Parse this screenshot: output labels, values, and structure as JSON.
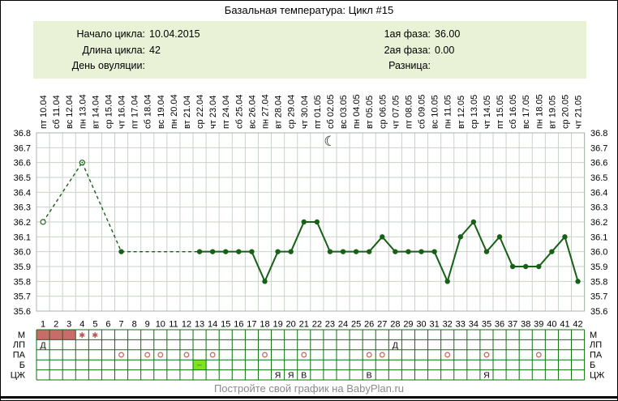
{
  "title": "Базальная температура: Цикл #15",
  "info": {
    "left": [
      {
        "label": "Начало цикла:",
        "value": "10.04.2015"
      },
      {
        "label": "Длина цикла:",
        "value": "42"
      },
      {
        "label": "День овуляции:",
        "value": ""
      }
    ],
    "right": [
      {
        "label": "1ая фаза:",
        "value": "36.00"
      },
      {
        "label": "2ая фаза:",
        "value": "0.00"
      },
      {
        "label": "Разница:",
        "value": ""
      }
    ]
  },
  "footer": {
    "text": "Постройте свой график на BabyPlan.ru"
  },
  "colors": {
    "info_box_bg": "#e9f2d7",
    "chart_grid": "#c9d2c9",
    "chart_border": "#a7b5a7",
    "line": "#176117",
    "table_border": "#0b720b",
    "menses_fill": "#c76b6b",
    "menses_star": "#c94f4f",
    "pa_circle": "#cb6b6b",
    "b_cell_bg": "#7de41e",
    "b_cell_text": "#555555",
    "footer_text": "#8a8a8a",
    "text": "#000000"
  },
  "chart_data": {
    "type": "line",
    "title": "Базальная температура: Цикл #15",
    "ylabel": "",
    "xlabel": "",
    "ylim": [
      35.6,
      36.8
    ],
    "ytick_step": 0.1,
    "grid": true,
    "moon": {
      "day": 23,
      "symbol": "☾",
      "name": "waning-crescent-moon"
    },
    "days": [
      {
        "day": 1,
        "weekday": "пт",
        "date": "10.04",
        "temp": 36.2,
        "marker": "open"
      },
      {
        "day": 2,
        "weekday": "сб",
        "date": "11.04",
        "temp": null
      },
      {
        "day": 3,
        "weekday": "вс",
        "date": "12.04",
        "temp": null
      },
      {
        "day": 4,
        "weekday": "пн",
        "date": "13.04",
        "temp": 36.6,
        "marker": "open-dot"
      },
      {
        "day": 5,
        "weekday": "вт",
        "date": "14.04",
        "temp": null
      },
      {
        "day": 6,
        "weekday": "ср",
        "date": "15.04",
        "temp": null
      },
      {
        "day": 7,
        "weekday": "чт",
        "date": "16.04",
        "temp": 36.0,
        "marker": "filled"
      },
      {
        "day": 8,
        "weekday": "пт",
        "date": "17.04",
        "temp": null
      },
      {
        "day": 9,
        "weekday": "сб",
        "date": "18.04",
        "temp": null
      },
      {
        "day": 10,
        "weekday": "вс",
        "date": "19.04",
        "temp": null
      },
      {
        "day": 11,
        "weekday": "пн",
        "date": "20.04",
        "temp": null
      },
      {
        "day": 12,
        "weekday": "вт",
        "date": "21.04",
        "temp": null
      },
      {
        "day": 13,
        "weekday": "ср",
        "date": "22.04",
        "temp": 36.0,
        "marker": "filled"
      },
      {
        "day": 14,
        "weekday": "чт",
        "date": "23.04",
        "temp": 36.0,
        "marker": "filled"
      },
      {
        "day": 15,
        "weekday": "пт",
        "date": "24.04",
        "temp": 36.0,
        "marker": "filled"
      },
      {
        "day": 16,
        "weekday": "сб",
        "date": "25.04",
        "temp": 36.0,
        "marker": "filled"
      },
      {
        "day": 17,
        "weekday": "вс",
        "date": "26.04",
        "temp": 36.0,
        "marker": "filled"
      },
      {
        "day": 18,
        "weekday": "пн",
        "date": "27.04",
        "temp": 35.8,
        "marker": "filled"
      },
      {
        "day": 19,
        "weekday": "вт",
        "date": "28.04",
        "temp": 36.0,
        "marker": "filled"
      },
      {
        "day": 20,
        "weekday": "ср",
        "date": "29.04",
        "temp": 36.0,
        "marker": "filled"
      },
      {
        "day": 21,
        "weekday": "чт",
        "date": "30.04",
        "temp": 36.2,
        "marker": "filled"
      },
      {
        "day": 22,
        "weekday": "пт",
        "date": "01.05",
        "temp": 36.2,
        "marker": "filled"
      },
      {
        "day": 23,
        "weekday": "сб",
        "date": "02.05",
        "temp": 36.0,
        "marker": "filled"
      },
      {
        "day": 24,
        "weekday": "вс",
        "date": "03.05",
        "temp": 36.0,
        "marker": "filled"
      },
      {
        "day": 25,
        "weekday": "пн",
        "date": "04.05",
        "temp": 36.0,
        "marker": "filled"
      },
      {
        "day": 26,
        "weekday": "вт",
        "date": "05.05",
        "temp": 36.0,
        "marker": "filled"
      },
      {
        "day": 27,
        "weekday": "ср",
        "date": "06.05",
        "temp": 36.1,
        "marker": "filled"
      },
      {
        "day": 28,
        "weekday": "чт",
        "date": "07.05",
        "temp": 36.0,
        "marker": "filled"
      },
      {
        "day": 29,
        "weekday": "пт",
        "date": "08.05",
        "temp": 36.0,
        "marker": "filled"
      },
      {
        "day": 30,
        "weekday": "сб",
        "date": "09.05",
        "temp": 36.0,
        "marker": "filled"
      },
      {
        "day": 31,
        "weekday": "вс",
        "date": "10.05",
        "temp": 36.0,
        "marker": "filled"
      },
      {
        "day": 32,
        "weekday": "пн",
        "date": "11.05",
        "temp": 35.8,
        "marker": "filled"
      },
      {
        "day": 33,
        "weekday": "вт",
        "date": "12.05",
        "temp": 36.1,
        "marker": "filled"
      },
      {
        "day": 34,
        "weekday": "ср",
        "date": "13.05",
        "temp": 36.2,
        "marker": "filled"
      },
      {
        "day": 35,
        "weekday": "чт",
        "date": "14.05",
        "temp": 36.0,
        "marker": "filled"
      },
      {
        "day": 36,
        "weekday": "пт",
        "date": "15.05",
        "temp": 36.1,
        "marker": "filled"
      },
      {
        "day": 37,
        "weekday": "сб",
        "date": "16.05",
        "temp": 35.9,
        "marker": "filled"
      },
      {
        "day": 38,
        "weekday": "вс",
        "date": "17.05",
        "temp": 35.9,
        "marker": "filled"
      },
      {
        "day": 39,
        "weekday": "пн",
        "date": "18.05",
        "temp": 35.9,
        "marker": "filled"
      },
      {
        "day": 40,
        "weekday": "вт",
        "date": "19.05",
        "temp": 36.0,
        "marker": "filled"
      },
      {
        "day": 41,
        "weekday": "ср",
        "date": "20.05",
        "temp": 36.1,
        "marker": "filled"
      },
      {
        "day": 42,
        "weekday": "чт",
        "date": "21.05",
        "temp": 35.8,
        "marker": "filled"
      }
    ],
    "table": {
      "row_labels": [
        "М",
        "ЛП",
        "ПА",
        "Б",
        "ЦЖ"
      ],
      "menstruation_block_days": [
        1,
        2,
        3
      ],
      "menstruation_star_days": [
        4,
        5
      ],
      "lp_cells": {
        "1": "Д",
        "28": "Д"
      },
      "pa_circle_days": [
        7,
        9,
        10,
        12,
        14,
        18,
        21,
        26,
        27,
        32,
        35,
        39
      ],
      "b_cells": {
        "13": "–"
      },
      "cj_cells": {
        "19": "Я",
        "20": "Я",
        "21": "В",
        "26": "В",
        "35": "Я"
      }
    }
  }
}
